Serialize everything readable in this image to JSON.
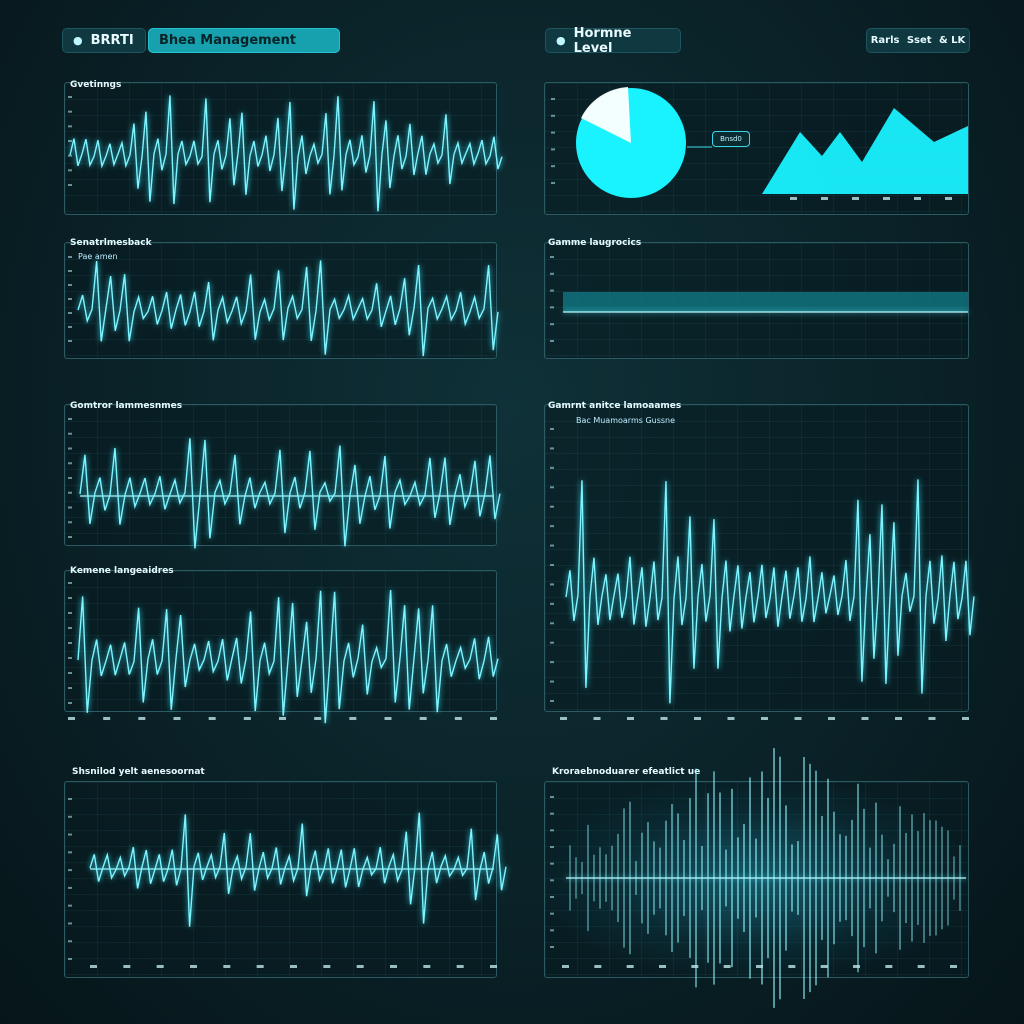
{
  "header": {
    "brand_label": "BRRTI",
    "active_tab_label": "Bhea Management",
    "center_label": "Hormne Level",
    "right_links": [
      "Rarls",
      "Sset",
      "& LK"
    ]
  },
  "panels": {
    "p1": {
      "title": "Gvetinngs"
    },
    "p2": {
      "title": "Senatrlmesback",
      "subtitle": "Pae amen"
    },
    "p3": {
      "title": "Gomtror lammesnmes"
    },
    "p4": {
      "title": "Kemene langeaidres"
    },
    "p5": {
      "title": "Shsnilod yelt aenesoornat"
    },
    "pie_panel": {
      "callout": "Bnsd0"
    },
    "p6": {
      "title": "Gamme laugrocics"
    },
    "p7": {
      "title": "Gamrnt anitce lamoaames",
      "subtitle": "Bac Muamoarms Gussne"
    },
    "p8": {
      "title": "Kroraebnoduarer efeatlict ue"
    }
  },
  "colors": {
    "accent": "#7ff4ff",
    "fill": "#19f2ff",
    "panel_border": "#2b5a63"
  }
}
